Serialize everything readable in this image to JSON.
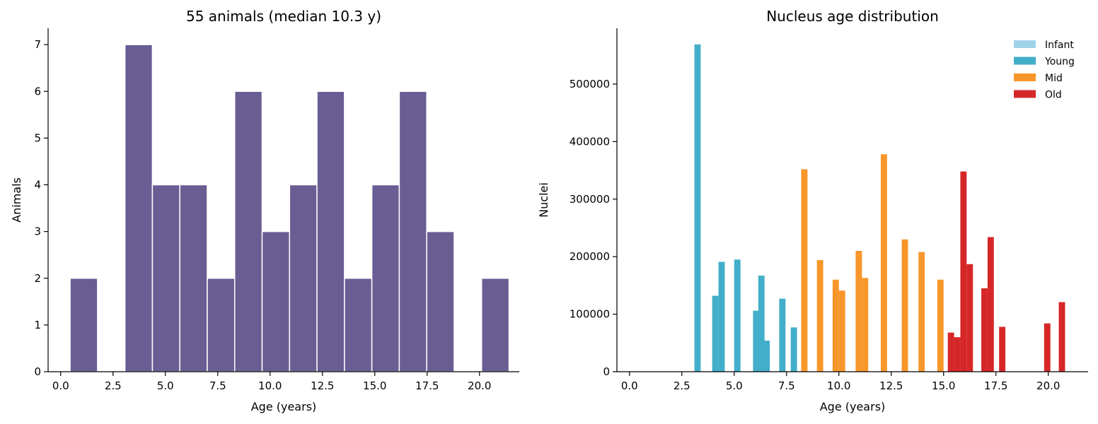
{
  "chart_data": [
    {
      "type": "bar",
      "title": "55 animals (median 10.3 y)",
      "xlabel": "Age (years)",
      "ylabel": "Animals",
      "xlim": [
        -0.6,
        21.9
      ],
      "ylim": [
        0,
        7.35
      ],
      "xticks": [
        0.0,
        2.5,
        5.0,
        7.5,
        10.0,
        12.5,
        15.0,
        17.5,
        20.0
      ],
      "xtick_labels": [
        "0.0",
        "2.5",
        "5.0",
        "7.5",
        "10.0",
        "12.5",
        "15.0",
        "17.5",
        "20.0"
      ],
      "yticks": [
        0,
        1,
        2,
        3,
        4,
        5,
        6,
        7
      ],
      "ytick_labels": [
        "0",
        "1",
        "2",
        "3",
        "4",
        "5",
        "6",
        "7"
      ],
      "bin_edges": [
        0.45,
        1.76,
        3.07,
        4.38,
        5.69,
        7.0,
        8.31,
        9.62,
        10.93,
        12.24,
        13.55,
        14.86,
        16.17,
        17.48,
        18.79,
        20.1,
        21.41
      ],
      "values": [
        2,
        0,
        7,
        4,
        4,
        2,
        6,
        3,
        4,
        6,
        2,
        4,
        6,
        3,
        0,
        2
      ],
      "color": "#6a5d93",
      "grid": false
    },
    {
      "type": "bar",
      "title": "Nucleus age distribution",
      "xlabel": "Age (years)",
      "ylabel": "Nuclei",
      "xlim": [
        -0.6,
        21.9
      ],
      "ylim": [
        0,
        597000
      ],
      "xticks": [
        0.0,
        2.5,
        5.0,
        7.5,
        10.0,
        12.5,
        15.0,
        17.5,
        20.0
      ],
      "xtick_labels": [
        "0.0",
        "2.5",
        "5.0",
        "7.5",
        "10.0",
        "12.5",
        "15.0",
        "17.5",
        "20.0"
      ],
      "yticks": [
        0,
        100000,
        200000,
        300000,
        400000,
        500000
      ],
      "ytick_labels": [
        "0",
        "100000",
        "200000",
        "300000",
        "400000",
        "500000"
      ],
      "bar_width": 0.3,
      "legend_position": "top-right",
      "grid": false,
      "series": [
        {
          "name": "Infant",
          "color": "#a0d2e7",
          "x": [],
          "values": []
        },
        {
          "name": "Young",
          "color": "#43aec9",
          "x": [
            3.25,
            4.1,
            4.4,
            5.15,
            6.05,
            6.3,
            6.55,
            7.3,
            7.85
          ],
          "values": [
            569000,
            132000,
            191000,
            195000,
            106000,
            167000,
            54000,
            127000,
            77000
          ]
        },
        {
          "name": "Mid",
          "color": "#f7962a",
          "x": [
            8.35,
            9.1,
            9.85,
            10.15,
            10.95,
            11.25,
            12.15,
            13.15,
            13.95,
            14.85
          ],
          "values": [
            352000,
            194000,
            160000,
            141000,
            210000,
            163000,
            378000,
            230000,
            208000,
            160000
          ]
        },
        {
          "name": "Old",
          "color": "#d62728",
          "x": [
            15.35,
            15.65,
            15.95,
            16.25,
            16.95,
            17.25,
            17.8,
            19.95,
            20.65
          ],
          "values": [
            68000,
            60000,
            348000,
            187000,
            145000,
            234000,
            78000,
            84000,
            121000
          ]
        }
      ]
    }
  ]
}
